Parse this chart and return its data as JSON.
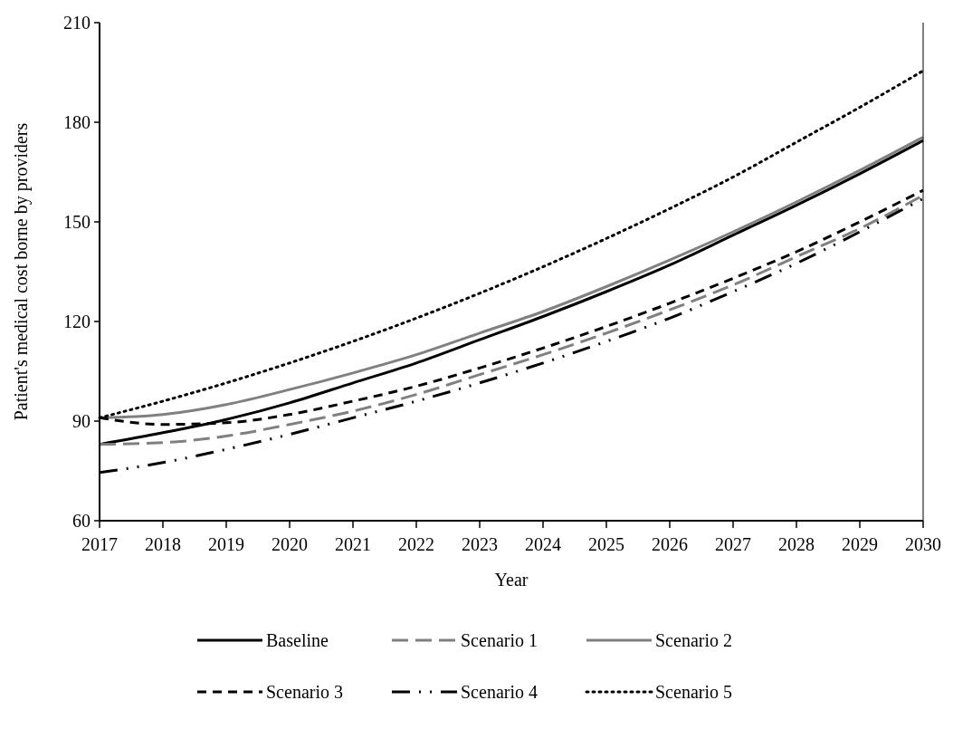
{
  "chart_data": {
    "type": "line",
    "xlabel": "Year",
    "ylabel": "Patient's medical cost borne by providers",
    "x": [
      2017,
      2018,
      2019,
      2020,
      2021,
      2022,
      2023,
      2024,
      2025,
      2026,
      2027,
      2028,
      2029,
      2030
    ],
    "xlim": [
      2017,
      2030
    ],
    "xticks": [
      2017,
      2018,
      2019,
      2020,
      2021,
      2022,
      2023,
      2024,
      2025,
      2026,
      2027,
      2028,
      2029,
      2030
    ],
    "ylim": [
      60,
      210
    ],
    "yticks": [
      60,
      90,
      120,
      150,
      180,
      210
    ],
    "grid": false,
    "legend": "bottom",
    "series": [
      {
        "name": "Baseline",
        "color": "#000000",
        "line_style": "solid",
        "values": [
          83,
          86.5,
          90.5,
          95.5,
          101.5,
          107.5,
          114.5,
          121.5,
          129,
          137,
          146,
          155,
          164.5,
          174.5
        ]
      },
      {
        "name": "Scenario 1",
        "color": "#808080",
        "line_style": "dashed",
        "values": [
          83,
          83.5,
          85.5,
          89,
          93,
          98,
          104,
          110,
          116.5,
          123.5,
          131,
          139.5,
          148,
          158
        ]
      },
      {
        "name": "Scenario 2",
        "color": "#808080",
        "line_style": "solid",
        "values": [
          91,
          92,
          95,
          99.5,
          104.5,
          110,
          116.5,
          123,
          130.5,
          138.5,
          147,
          156,
          165.5,
          175.5
        ]
      },
      {
        "name": "Scenario 3",
        "color": "#000000",
        "line_style": "dashed",
        "values": [
          91,
          89,
          89.5,
          92,
          96,
          100.5,
          106,
          112,
          118.5,
          125.5,
          133,
          141,
          150,
          159.5
        ]
      },
      {
        "name": "Scenario 4",
        "color": "#000000",
        "line_style": "dashdotdot",
        "values": [
          74.5,
          77.5,
          81.5,
          86,
          91,
          96,
          101.5,
          107.5,
          114,
          121,
          129,
          137.5,
          147,
          157
        ]
      },
      {
        "name": "Scenario 5",
        "color": "#000000",
        "line_style": "dotted",
        "values": [
          91,
          96,
          101.5,
          107.5,
          114,
          121,
          128.5,
          136.5,
          145,
          154,
          163.5,
          174,
          184.5,
          195.5
        ]
      }
    ]
  }
}
